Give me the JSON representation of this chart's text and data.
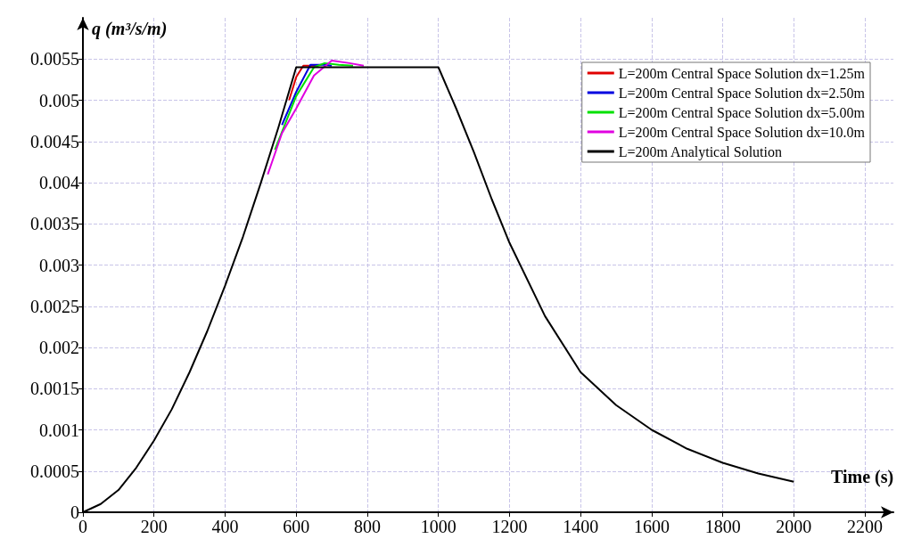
{
  "chart_data": {
    "type": "line",
    "xlabel": "Time (s)",
    "ylabel": "q (m³/s/m)",
    "xlim": [
      0,
      2280
    ],
    "ylim": [
      0,
      0.006
    ],
    "xticks": [
      0,
      200,
      400,
      600,
      800,
      1000,
      1200,
      1400,
      1600,
      1800,
      2000,
      2200
    ],
    "yticks": [
      0,
      0.0005,
      0.001,
      0.0015,
      0.002,
      0.0025,
      0.003,
      0.0035,
      0.004,
      0.0045,
      0.005,
      0.0055
    ],
    "grid": true,
    "legend": "top right",
    "marker": "none",
    "line_style": "solid",
    "series": [
      {
        "name": "L=200m Central Space Solution dx=1.25m",
        "color": "#e00000",
        "x": [
          580,
          600,
          620,
          660
        ],
        "values": [
          0.005,
          0.00528,
          0.00542,
          0.00542
        ]
      },
      {
        "name": "L=200m Central Space Solution dx=2.50m",
        "color": "#0000e0",
        "x": [
          560,
          600,
          640,
          680,
          700
        ],
        "values": [
          0.0047,
          0.0051,
          0.00543,
          0.00543,
          0.00542
        ]
      },
      {
        "name": "L=200m Central Space Solution dx=5.00m",
        "color": "#00e000",
        "x": [
          540,
          600,
          650,
          680,
          720,
          760
        ],
        "values": [
          0.0044,
          0.00505,
          0.0054,
          0.00545,
          0.00543,
          0.00542
        ]
      },
      {
        "name": "L=200m Central Space Solution dx=10.0m",
        "color": "#e000e0",
        "x": [
          520,
          560,
          600,
          650,
          700,
          750,
          790
        ],
        "values": [
          0.0041,
          0.0046,
          0.0049,
          0.0053,
          0.00548,
          0.00545,
          0.00542
        ]
      },
      {
        "name": "L=200m Analytical Solution",
        "color": "#000000",
        "x": [
          0,
          50,
          100,
          150,
          200,
          250,
          300,
          350,
          400,
          450,
          500,
          550,
          600,
          1000,
          1050,
          1100,
          1150,
          1200,
          1300,
          1400,
          1500,
          1600,
          1700,
          1800,
          1900,
          2000
        ],
        "values": [
          0,
          0.0001,
          0.00027,
          0.00054,
          0.00087,
          0.00125,
          0.0017,
          0.0022,
          0.00275,
          0.00334,
          0.00399,
          0.00467,
          0.0054,
          0.0054,
          0.0049,
          0.00437,
          0.0038,
          0.00327,
          0.00238,
          0.0017,
          0.0013,
          0.001,
          0.00077,
          0.0006,
          0.00047,
          0.00037
        ]
      }
    ]
  }
}
